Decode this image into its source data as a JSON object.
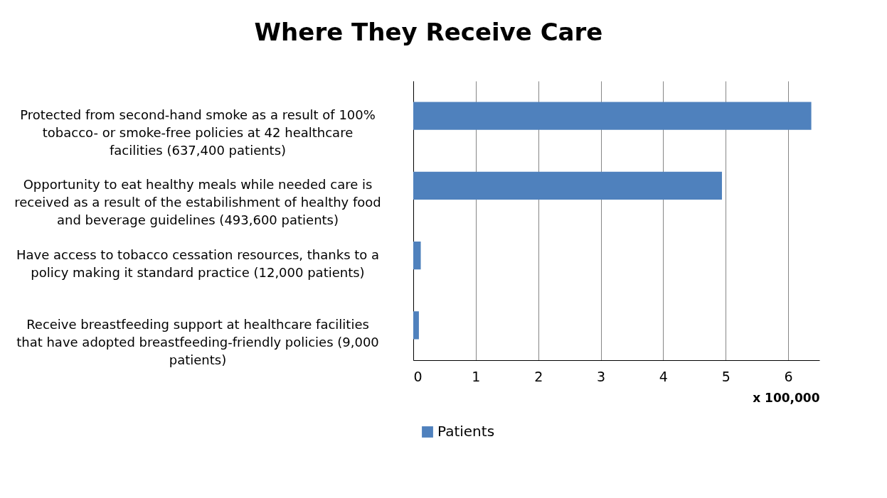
{
  "chart_data": {
    "type": "bar",
    "orientation": "horizontal",
    "title": "Where They Receive Care",
    "xlabel": "x 100,000",
    "categories": [
      "Protected from second-hand smoke as a result of 100% tobacco- or smoke-free policies at 42 healthcare facilities (637,400 patients)",
      "Opportunity to eat healthy meals while needed care is received as a result of the estabilishment of healthy food and beverage guidelines (493,600 patients)",
      "Have access to tobacco cessation resources, thanks to a policy making it standard practice (12,000 patients)",
      "Receive breastfeeding support at healthcare facilities that have adopted breastfeeding-friendly policies (9,000 patients)"
    ],
    "series": [
      {
        "name": "Patients",
        "color": "#4f81bd",
        "values": [
          6.37,
          4.94,
          0.12,
          0.09
        ]
      }
    ],
    "xlim": [
      0,
      6.5
    ],
    "xticks": [
      0,
      1,
      2,
      3,
      4,
      5,
      6
    ],
    "grid": "x",
    "legend": "bottom"
  }
}
